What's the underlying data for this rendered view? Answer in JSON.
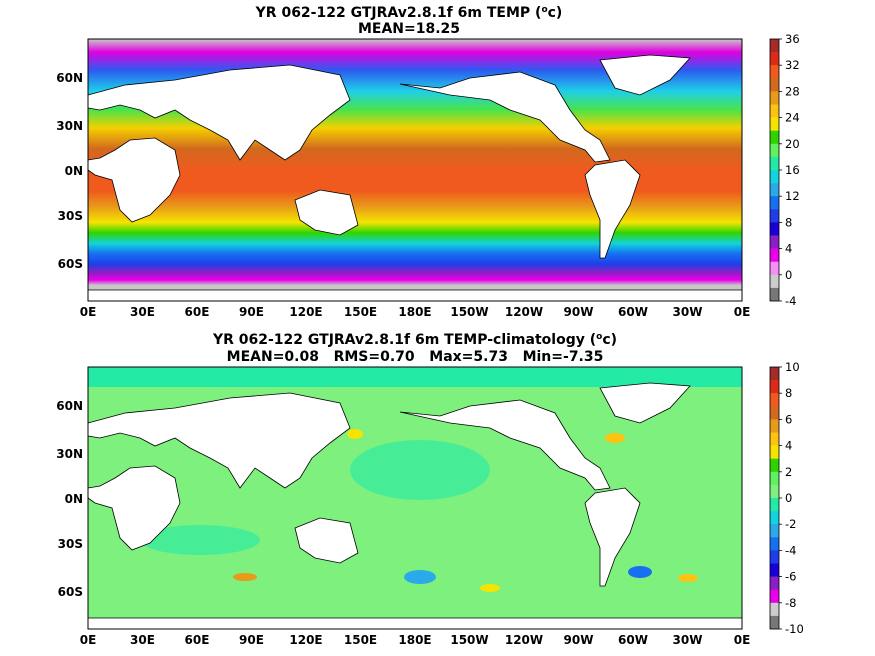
{
  "chart_data": [
    {
      "type": "heatmap",
      "title_parts": [
        "YR 062-122 GTJRAv2.8.1f 6m TEMP (",
        "o",
        "c)"
      ],
      "subtitle": "MEAN=18.25",
      "x_ticks": [
        "0E",
        "30E",
        "60E",
        "90E",
        "120E",
        "150E",
        "180E",
        "150W",
        "120W",
        "90W",
        "60W",
        "30W",
        "0E"
      ],
      "y_ticks": [
        "60N",
        "30N",
        "0N",
        "30S",
        "60S"
      ],
      "colorbar": {
        "ticks": [
          "36",
          "32",
          "28",
          "24",
          "20",
          "16",
          "12",
          "8",
          "4",
          "0",
          "-4"
        ],
        "colors": [
          "#a52a2a",
          "#dd2c16",
          "#f05a1e",
          "#d2691e",
          "#e89a19",
          "#fcc310",
          "#f5e400",
          "#2fd400",
          "#60f060",
          "#23eba6",
          "#12d4dc",
          "#2aaae8",
          "#1670f2",
          "#1f3ee8",
          "#1900d6",
          "#8a1fc4",
          "#ea00ea",
          "#f58ef5",
          "#cccccc",
          "#777777"
        ]
      }
    },
    {
      "type": "heatmap",
      "title_parts": [
        "YR 062-122 GTJRAv2.8.1f 6m TEMP-climatology (",
        "o",
        "c)"
      ],
      "subtitle": "MEAN=0.08   RMS=0.70   Max=5.73   Min=-7.35",
      "x_ticks": [
        "0E",
        "30E",
        "60E",
        "90E",
        "120E",
        "150E",
        "180E",
        "150W",
        "120W",
        "90W",
        "60W",
        "30W",
        "0E"
      ],
      "y_ticks": [
        "60N",
        "30N",
        "0N",
        "30S",
        "60S"
      ],
      "colorbar": {
        "ticks": [
          "10",
          "8",
          "6",
          "4",
          "2",
          "0",
          "-2",
          "-4",
          "-6",
          "-8",
          "-10"
        ],
        "colors": [
          "#a52a2a",
          "#dd2c16",
          "#f05a1e",
          "#d2691e",
          "#e89a19",
          "#fcc310",
          "#f5e400",
          "#2fd400",
          "#60f060",
          "#7ef07e",
          "#23eba6",
          "#12d4dc",
          "#2aaae8",
          "#1670f2",
          "#1f3ee8",
          "#1900d6",
          "#8a1fc4",
          "#ea00ea",
          "#cccccc",
          "#777777"
        ]
      }
    }
  ]
}
